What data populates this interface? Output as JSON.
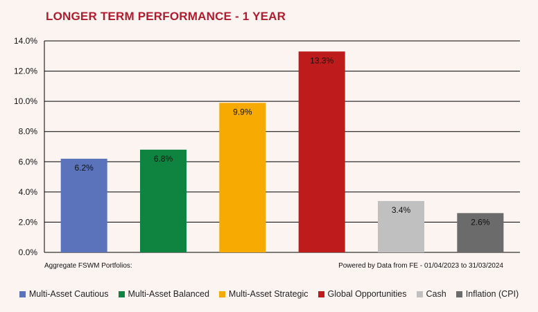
{
  "chart_data": {
    "type": "bar",
    "title": "LONGER TERM PERFORMANCE - 1 YEAR",
    "categories": [
      "Multi-Asset Cautious",
      "Multi-Asset Balanced",
      "Multi-Asset Strategic",
      "Global Opportunities",
      "Cash",
      "Inflation (CPI)"
    ],
    "values": [
      6.2,
      6.8,
      9.9,
      13.3,
      3.4,
      2.6
    ],
    "data_labels": [
      "6.2%",
      "6.8%",
      "9.9%",
      "13.3%",
      "3.4%",
      "2.6%"
    ],
    "colors": [
      "#5b73ba",
      "#0f8440",
      "#f6aa02",
      "#be1b1d",
      "#c0c0c0",
      "#6b6b6b"
    ],
    "ylim": [
      0,
      14
    ],
    "yticks": [
      0,
      2,
      4,
      6,
      8,
      10,
      12,
      14
    ],
    "ytick_labels": [
      "0.0%",
      "2.0%",
      "4.0%",
      "6.0%",
      "8.0%",
      "10.0%",
      "12.0%",
      "14.0%"
    ],
    "grid": true,
    "legend_position": "bottom",
    "xlabel": "",
    "ylabel": ""
  },
  "notes": {
    "left": "Aggregate FSWM Portfolios:",
    "right": "Powered by Data from FE - 01/04/2023 to 31/03/2024"
  }
}
